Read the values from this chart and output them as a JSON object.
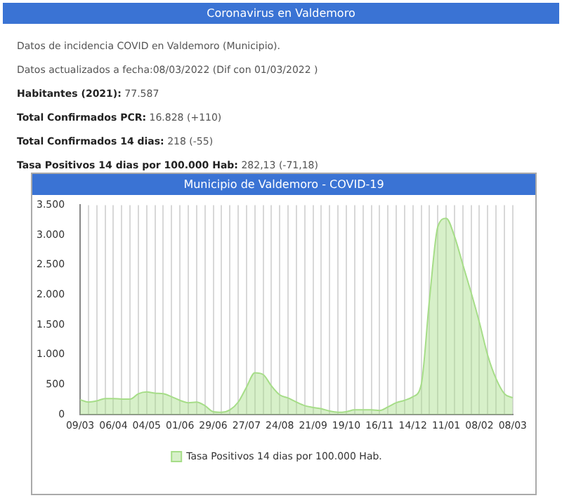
{
  "chart_data": {
    "type": "area",
    "subtitle": "Coronavirus en Valdemoro",
    "title": "Municipio de Valdemoro - COVID-19",
    "annotations": [
      "Datos de incidencia COVID en Valdemoro (Municipio).",
      "Datos actualizados a fecha:08/03/2022 (Dif con 01/03/2022 )",
      "Habitantes (2021): 77.587",
      "Total Confirmados PCR: 16.828 (+110)",
      "Total Confirmados 14 dias: 218 (-55)",
      "Tasa Positivos 14 dias por 100.000 Hab: 282,13 (-71,18)"
    ],
    "categories": [
      "09/03",
      null,
      null,
      null,
      "06/04",
      null,
      null,
      null,
      "04/05",
      null,
      null,
      null,
      "01/06",
      null,
      null,
      null,
      "29/06",
      null,
      null,
      null,
      "27/07",
      null,
      null,
      null,
      "24/08",
      null,
      null,
      null,
      "21/09",
      null,
      null,
      null,
      "19/10",
      null,
      null,
      null,
      "16/11",
      null,
      null,
      null,
      "14/12",
      null,
      null,
      null,
      "11/01",
      null,
      null,
      null,
      "08/02",
      null,
      null,
      null,
      "08/03"
    ],
    "series": [
      {
        "name": "Tasa Positivos 14 dias por 100.000 Hab.",
        "color": "#a6dd88",
        "values": [
          250,
          210,
          230,
          270,
          270,
          260,
          260,
          350,
          380,
          360,
          350,
          300,
          240,
          200,
          210,
          150,
          50,
          40,
          80,
          210,
          460,
          700,
          670,
          480,
          330,
          280,
          210,
          150,
          120,
          100,
          60,
          40,
          50,
          80,
          80,
          80,
          70,
          130,
          200,
          240,
          300,
          500,
          1930,
          3140,
          3280,
          2980,
          2510,
          2040,
          1540,
          990,
          600,
          350,
          282.13
        ]
      }
    ],
    "ylim": [
      0,
      3500
    ],
    "yticks": [
      0,
      500,
      {
        "value": 1000,
        "label": "1.000"
      },
      {
        "value": 1500,
        "label": "1.500"
      },
      {
        "value": 2000,
        "label": "2.000"
      },
      {
        "value": 2500,
        "label": "2.500"
      },
      {
        "value": 3000,
        "label": "3.000"
      },
      {
        "value": 3500,
        "label": "3.500"
      }
    ],
    "grid": "x",
    "legend": "bottom",
    "marker": "none"
  }
}
